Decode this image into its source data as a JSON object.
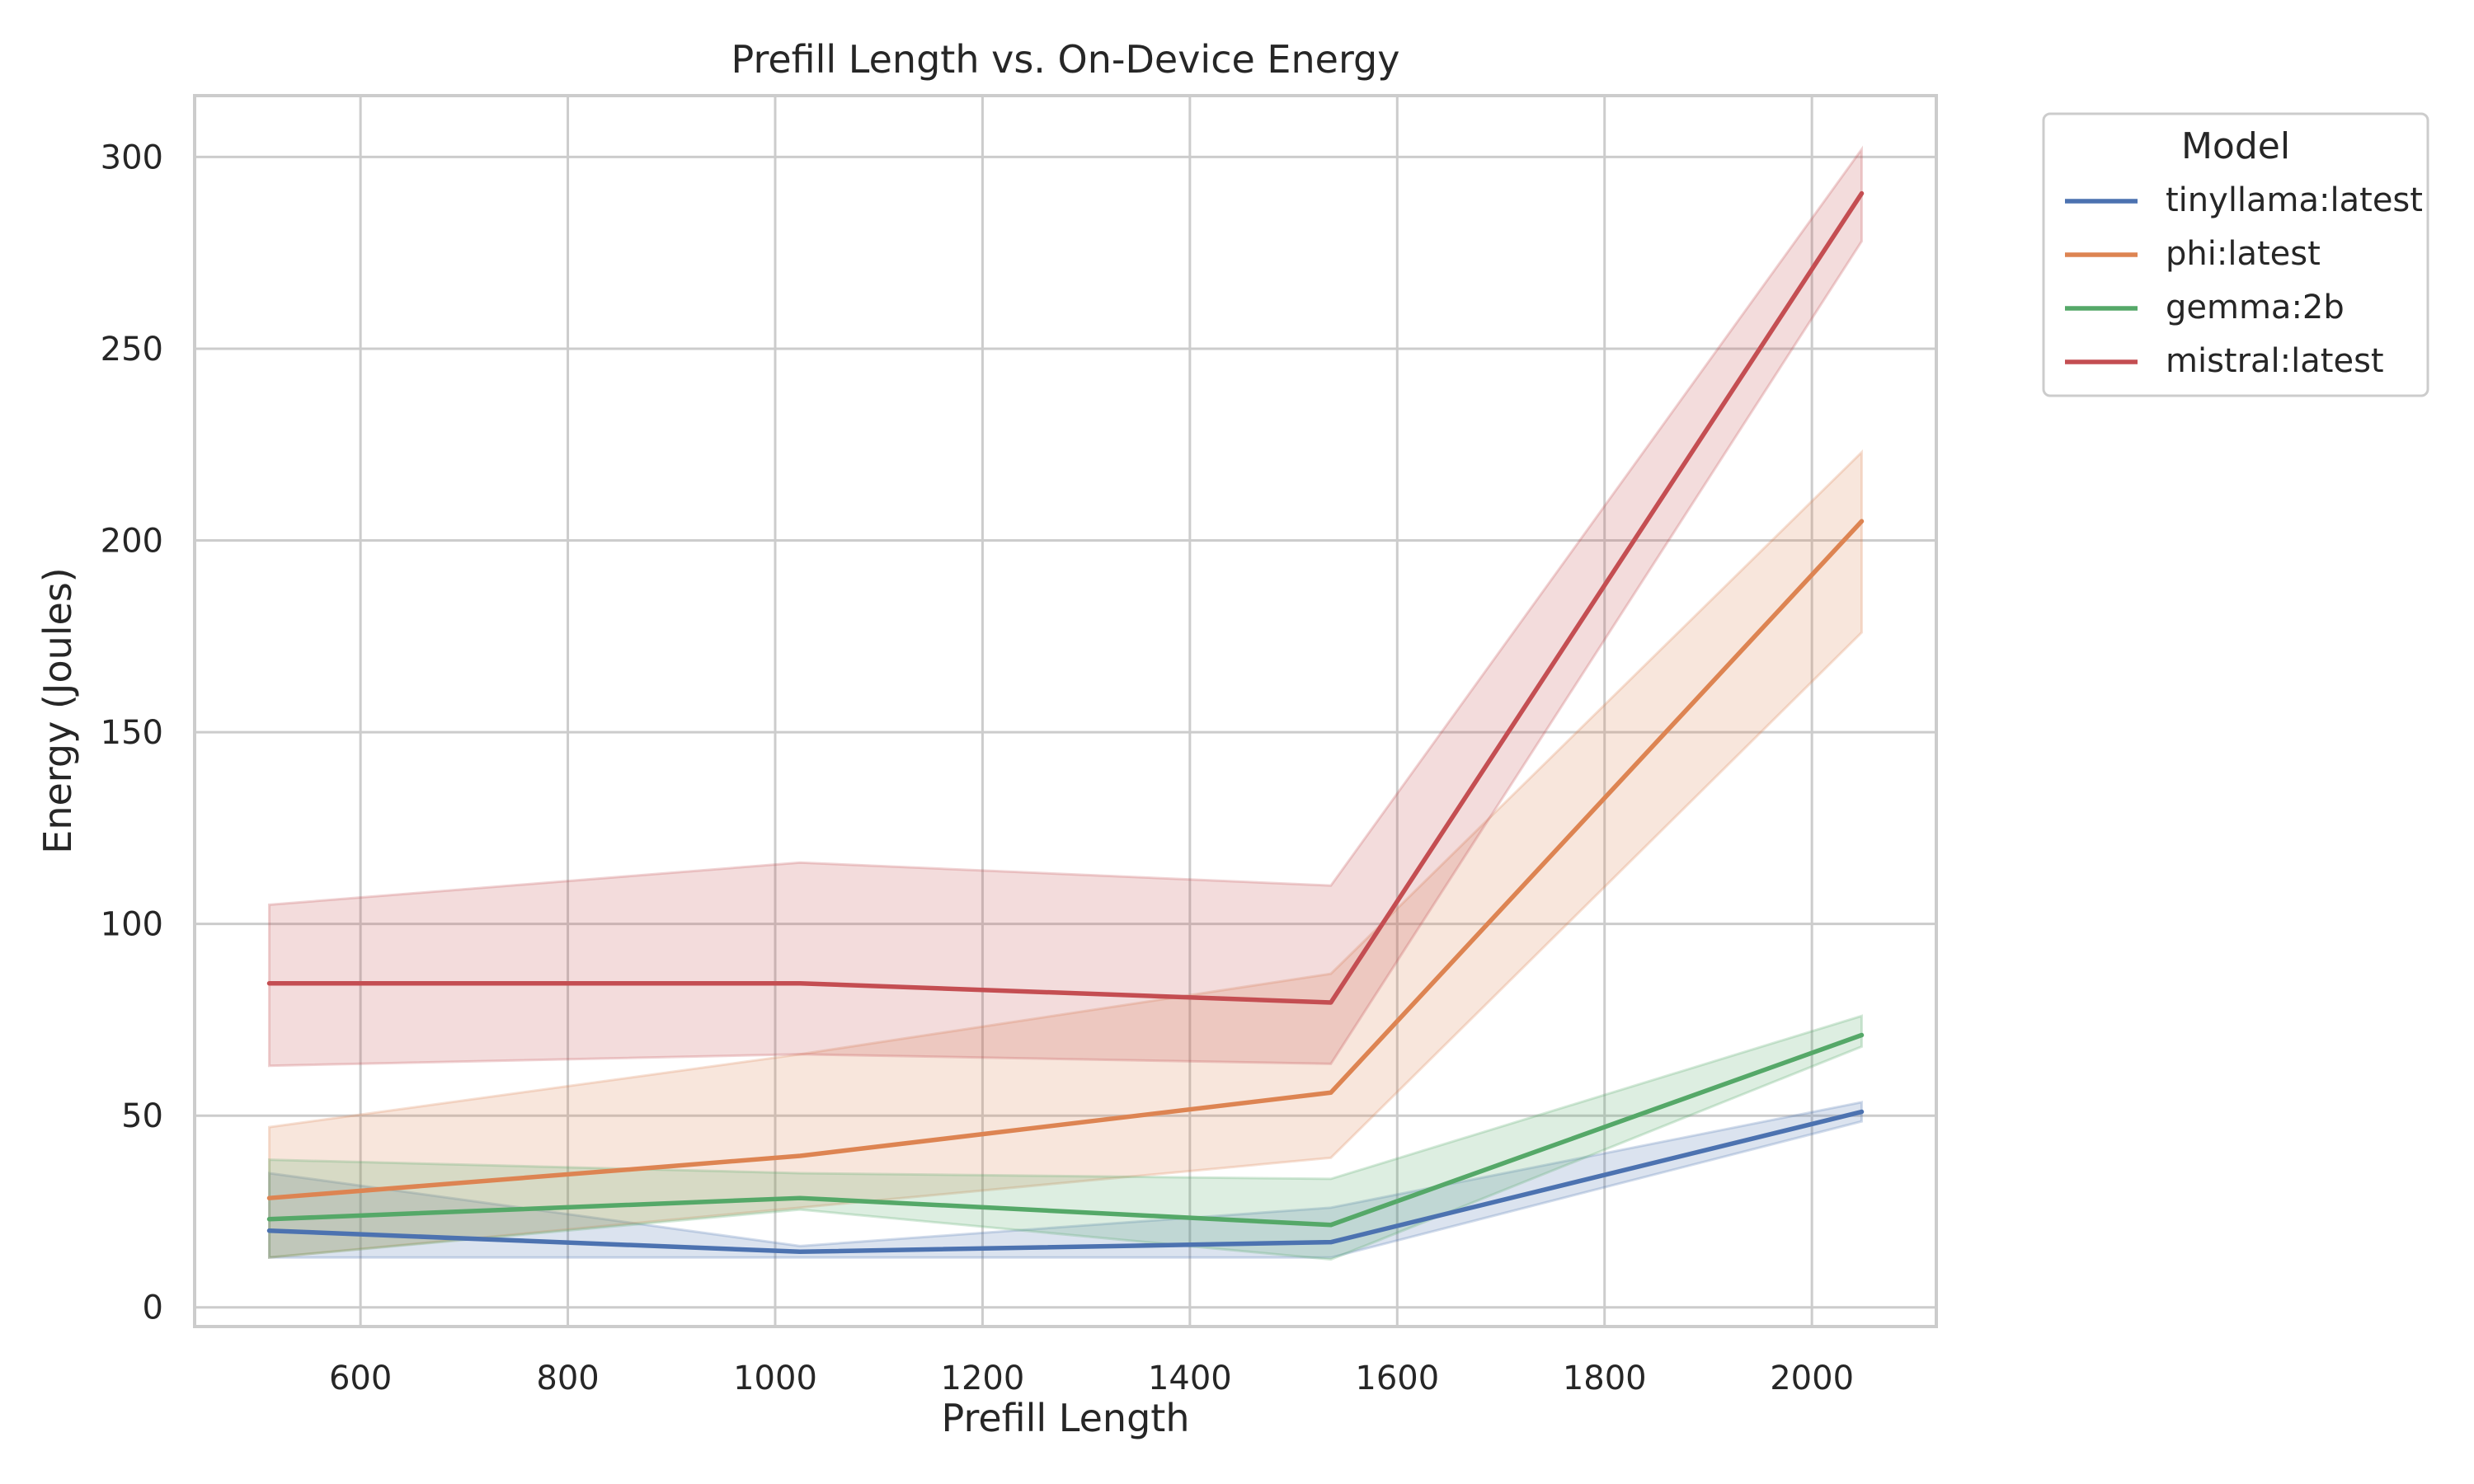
{
  "chart_data": {
    "type": "line",
    "title": "Prefill Length vs. On-Device Energy",
    "xlabel": "Prefill Length",
    "ylabel": "Energy (Joules)",
    "xlim": [
      440,
      2120
    ],
    "ylim": [
      -5,
      316
    ],
    "xticks": [
      600,
      800,
      1000,
      1200,
      1400,
      1600,
      1800,
      2000
    ],
    "yticks": [
      0,
      50,
      100,
      150,
      200,
      250,
      300
    ],
    "grid": true,
    "legend": {
      "title": "Model",
      "position": "outside-top-right"
    },
    "x": [
      512,
      1024,
      1536,
      2048
    ],
    "series": [
      {
        "name": "tinyllama:latest",
        "color": "#4c72b0",
        "values": [
          20,
          14.5,
          17,
          51
        ],
        "ci_lower": [
          13,
          13,
          13,
          48.5
        ],
        "ci_upper": [
          35,
          16,
          26,
          53.5
        ]
      },
      {
        "name": "phi:latest",
        "color": "#dd8452",
        "values": [
          28.5,
          39.5,
          56,
          205
        ],
        "ci_lower": [
          13,
          26,
          39,
          176
        ],
        "ci_upper": [
          47,
          66,
          87,
          223
        ]
      },
      {
        "name": "gemma:2b",
        "color": "#55a868",
        "values": [
          23,
          28.5,
          21.5,
          71
        ],
        "ci_lower": [
          13,
          25.5,
          12.5,
          68
        ],
        "ci_upper": [
          38.5,
          35,
          33.5,
          76
        ]
      },
      {
        "name": "mistral:latest",
        "color": "#c44e52",
        "values": [
          84.5,
          84.5,
          79.5,
          290.5
        ],
        "ci_lower": [
          63,
          66,
          63.5,
          278
        ],
        "ci_upper": [
          105,
          116,
          110,
          302
        ]
      }
    ]
  }
}
